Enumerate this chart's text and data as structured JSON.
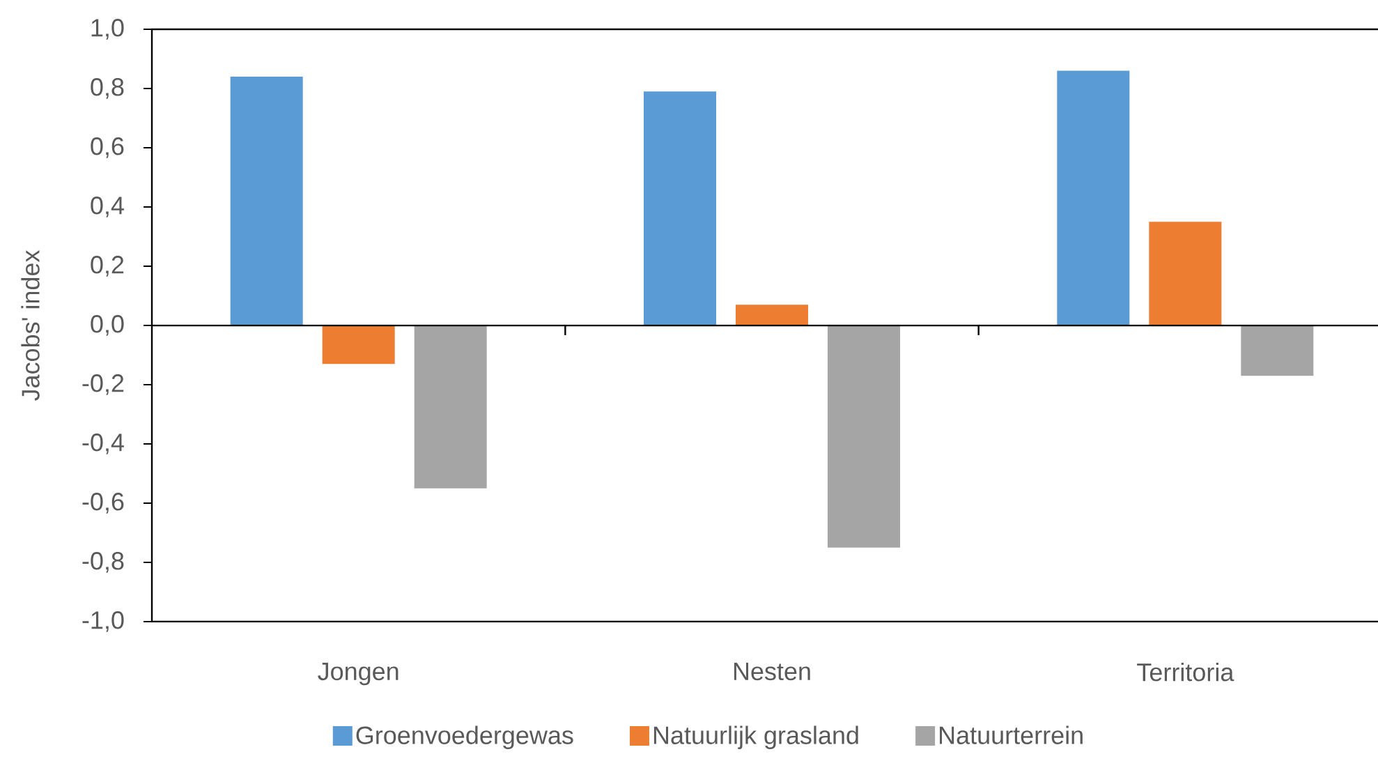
{
  "chart_data": {
    "type": "bar",
    "ylabel": "Jacobs' index",
    "categories": [
      "Jongen",
      "Nesten",
      "Territoria"
    ],
    "series": [
      {
        "name": "Groenvoedergewas",
        "color": "#5b9bd5",
        "values": [
          0.84,
          0.79,
          0.86
        ]
      },
      {
        "name": "Natuurlijk grasland",
        "color": "#ed7d31",
        "values": [
          -0.13,
          0.07,
          0.35
        ]
      },
      {
        "name": "Natuurterrein",
        "color": "#a5a5a5",
        "values": [
          -0.55,
          -0.75,
          -0.17
        ]
      }
    ],
    "ylim": [
      -1.0,
      1.0
    ],
    "yticks": [
      {
        "value": -1.0,
        "label": "-1,0"
      },
      {
        "value": -0.8,
        "label": "-0,8"
      },
      {
        "value": -0.6,
        "label": "-0,6"
      },
      {
        "value": -0.4,
        "label": "-0,4"
      },
      {
        "value": -0.2,
        "label": "-0,2"
      },
      {
        "value": 0.0,
        "label": "0,0"
      },
      {
        "value": 0.2,
        "label": "0,2"
      },
      {
        "value": 0.4,
        "label": "0,4"
      },
      {
        "value": 0.6,
        "label": "0,6"
      },
      {
        "value": 0.8,
        "label": "0,8"
      },
      {
        "value": 1.0,
        "label": "1,0"
      }
    ],
    "legend": "bottom"
  }
}
